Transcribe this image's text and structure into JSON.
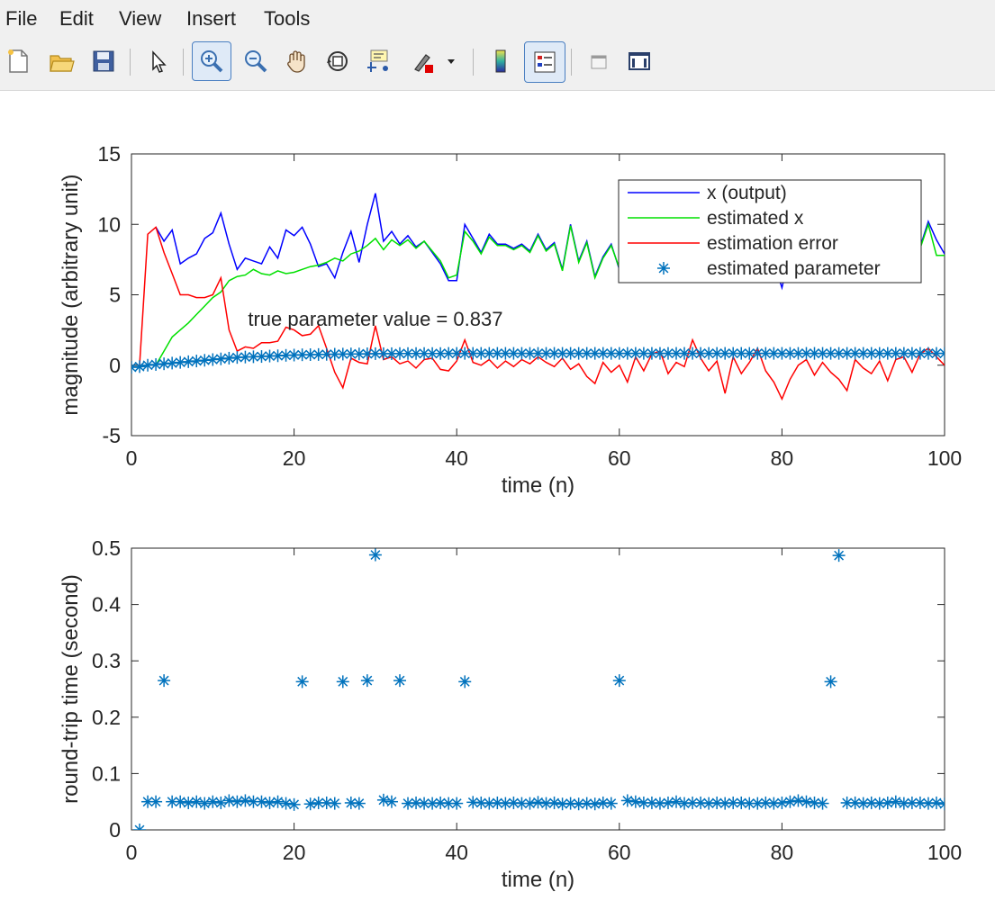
{
  "menu": {
    "items": [
      "File",
      "Edit",
      "View",
      "Insert",
      "Tools"
    ]
  },
  "toolbar": {
    "buttons": [
      "new-figure",
      "open-file",
      "save",
      "select-pointer",
      "zoom-in",
      "zoom-out",
      "pan",
      "rotate-3d",
      "data-cursor",
      "brush",
      "colorbar",
      "legend",
      "hide-plot-tools",
      "show-plot-tools"
    ],
    "active": [
      "zoom-in",
      "legend"
    ]
  },
  "chart_data": [
    {
      "type": "line",
      "xlabel": "time (n)",
      "ylabel": "magnitude (arbitrary unit)",
      "xlim": [
        0,
        100
      ],
      "ylim": [
        -5,
        15
      ],
      "xticks": [
        0,
        20,
        40,
        60,
        80,
        100
      ],
      "yticks": [
        -5,
        0,
        5,
        10,
        15
      ],
      "annotation": {
        "text": "true parameter value = 0.837",
        "x": 30,
        "y": 2.8
      },
      "legend_position": "top-right",
      "series": [
        {
          "name": "x (output)",
          "color": "#0000ff",
          "marker": "none",
          "x": [
            3,
            4,
            5,
            6,
            7,
            8,
            9,
            10,
            11,
            12,
            13,
            14,
            15,
            16,
            17,
            18,
            19,
            20,
            21,
            22,
            23,
            24,
            25,
            26,
            27,
            28,
            29,
            30,
            31,
            32,
            33,
            34,
            35,
            36,
            37,
            38,
            39,
            40,
            41,
            42,
            43,
            44,
            45,
            46,
            47,
            48,
            49,
            50,
            51,
            52,
            53,
            54,
            55,
            56,
            57,
            58,
            59,
            60,
            61,
            62,
            63,
            64,
            65,
            66,
            67,
            68,
            69,
            70,
            71,
            72,
            73,
            74,
            75,
            76,
            77,
            78,
            79,
            80,
            81,
            82,
            83,
            84,
            85,
            86,
            87,
            88,
            89,
            90,
            91,
            92,
            93,
            94,
            95,
            96,
            97,
            98,
            99,
            100
          ],
          "y": [
            9.8,
            8.8,
            9.6,
            7.2,
            7.6,
            7.9,
            9.0,
            9.4,
            10.8,
            8.6,
            6.8,
            7.6,
            7.4,
            7.2,
            8.4,
            7.6,
            9.6,
            9.2,
            9.8,
            8.6,
            7.0,
            7.2,
            6.2,
            8.0,
            9.5,
            7.3,
            10.0,
            12.2,
            8.8,
            9.5,
            8.6,
            9.2,
            8.4,
            8.8,
            8.0,
            7.2,
            6.0,
            6.0,
            10.0,
            9.0,
            8.0,
            9.3,
            8.6,
            8.6,
            8.3,
            8.6,
            8.1,
            9.3,
            8.2,
            8.7,
            6.8,
            10.0,
            7.4,
            8.8,
            6.3,
            7.7,
            8.6,
            6.8,
            7.8,
            8.5,
            7.8,
            9.0,
            7.6,
            8.4,
            8.0,
            7.0,
            9.4,
            7.8,
            8.3,
            7.5,
            8.5,
            8.1,
            9.2,
            7.6,
            7.9,
            8.6,
            7.3,
            5.5,
            8.0,
            8.3,
            7.6,
            8.8,
            7.1,
            8.4,
            7.9,
            8.6,
            7.2,
            8.3,
            8.5,
            7.8,
            8.1,
            8.9,
            7.3,
            8.0,
            8.4,
            10.2,
            8.9,
            7.9
          ]
        },
        {
          "name": "estimated x",
          "color": "#00e000",
          "marker": "none",
          "x": [
            3,
            4,
            5,
            6,
            7,
            8,
            9,
            10,
            11,
            12,
            13,
            14,
            15,
            16,
            17,
            18,
            19,
            20,
            21,
            22,
            23,
            24,
            25,
            26,
            27,
            28,
            29,
            30,
            31,
            32,
            33,
            34,
            35,
            36,
            37,
            38,
            39,
            40,
            41,
            42,
            43,
            44,
            45,
            46,
            47,
            48,
            49,
            50,
            51,
            52,
            53,
            54,
            55,
            56,
            57,
            58,
            59,
            60,
            61,
            62,
            63,
            64,
            65,
            66,
            67,
            68,
            69,
            70,
            71,
            72,
            73,
            74,
            75,
            76,
            77,
            78,
            79,
            80,
            81,
            82,
            83,
            84,
            85,
            86,
            87,
            88,
            89,
            90,
            91,
            92,
            93,
            94,
            95,
            96,
            97,
            98,
            99,
            100
          ],
          "y": [
            0.0,
            1.0,
            2.0,
            2.5,
            3.0,
            3.6,
            4.2,
            4.8,
            5.2,
            6.0,
            6.3,
            6.4,
            6.8,
            6.5,
            6.4,
            6.7,
            6.5,
            6.6,
            6.8,
            7.0,
            7.1,
            7.3,
            7.6,
            7.4,
            7.9,
            8.1,
            8.5,
            9.0,
            8.2,
            8.9,
            8.5,
            8.9,
            8.3,
            8.8,
            8.1,
            7.4,
            6.2,
            6.4,
            9.5,
            8.8,
            7.9,
            9.1,
            8.5,
            8.5,
            8.2,
            8.5,
            8.0,
            9.2,
            8.1,
            8.6,
            6.7,
            9.9,
            7.3,
            8.7,
            6.2,
            7.6,
            8.5,
            6.9,
            7.7,
            8.4,
            7.7,
            8.9,
            7.5,
            8.3,
            7.9,
            7.0,
            9.3,
            7.7,
            8.2,
            7.4,
            8.4,
            8.0,
            9.1,
            7.5,
            7.8,
            8.5,
            7.2,
            6.8,
            7.9,
            8.2,
            7.5,
            8.7,
            7.0,
            8.3,
            7.8,
            8.5,
            7.1,
            8.2,
            8.4,
            7.7,
            8.0,
            8.8,
            7.2,
            7.9,
            8.3,
            10.0,
            7.8,
            7.8
          ]
        },
        {
          "name": "estimation error",
          "color": "#ff0000",
          "marker": "none",
          "x": [
            1,
            2,
            3,
            4,
            5,
            6,
            7,
            8,
            9,
            10,
            11,
            12,
            13,
            14,
            15,
            16,
            17,
            18,
            19,
            20,
            21,
            22,
            23,
            24,
            25,
            26,
            27,
            28,
            29,
            30,
            31,
            32,
            33,
            34,
            35,
            36,
            37,
            38,
            39,
            40,
            41,
            42,
            43,
            44,
            45,
            46,
            47,
            48,
            49,
            50,
            51,
            52,
            53,
            54,
            55,
            56,
            57,
            58,
            59,
            60,
            61,
            62,
            63,
            64,
            65,
            66,
            67,
            68,
            69,
            70,
            71,
            72,
            73,
            74,
            75,
            76,
            77,
            78,
            79,
            80,
            81,
            82,
            83,
            84,
            85,
            86,
            87,
            88,
            89,
            90,
            91,
            92,
            93,
            94,
            95,
            96,
            97,
            98,
            99,
            100
          ],
          "y": [
            0.0,
            9.3,
            9.8,
            8.0,
            6.5,
            5.0,
            5.0,
            4.8,
            4.8,
            5.0,
            6.2,
            2.5,
            1.0,
            1.3,
            1.2,
            1.6,
            1.6,
            1.7,
            2.7,
            2.5,
            2.1,
            2.2,
            2.8,
            1.2,
            -0.5,
            -1.6,
            0.5,
            0.2,
            0.1,
            2.8,
            0.4,
            0.6,
            0.1,
            0.3,
            -0.2,
            0.4,
            0.5,
            -0.3,
            -0.4,
            0.3,
            1.8,
            0.2,
            0.0,
            0.4,
            -0.2,
            0.3,
            -0.1,
            0.4,
            0.1,
            0.6,
            0.2,
            -0.1,
            0.5,
            -0.3,
            0.1,
            -0.8,
            -1.3,
            0.2,
            -0.5,
            0.0,
            -1.2,
            0.6,
            -0.4,
            0.8,
            1.0,
            -0.6,
            0.2,
            -0.1,
            1.8,
            0.5,
            -0.4,
            0.3,
            -2.0,
            0.6,
            -0.6,
            0.2,
            1.2,
            -0.4,
            -1.2,
            -2.4,
            -1.0,
            0.0,
            0.4,
            -0.7,
            0.2,
            -0.5,
            -1.0,
            -1.8,
            0.4,
            -0.2,
            -0.6,
            0.3,
            -1.1,
            0.4,
            0.6,
            -0.5,
            0.8,
            1.2,
            0.6,
            0.0
          ]
        },
        {
          "name": "estimated parameter",
          "color": "#0072bd",
          "marker": "asterisk",
          "x": [
            0,
            1,
            2,
            3,
            4,
            5,
            6,
            7,
            8,
            9,
            10,
            11,
            12,
            13,
            14,
            15,
            16,
            17,
            18,
            19,
            20,
            21,
            22,
            23,
            24,
            25,
            26,
            27,
            28,
            29,
            30,
            31,
            32,
            33,
            34,
            35,
            36,
            37,
            38,
            39,
            40,
            41,
            42,
            43,
            44,
            45,
            46,
            47,
            48,
            49,
            50,
            51,
            52,
            53,
            54,
            55,
            56,
            57,
            58,
            59,
            60,
            61,
            62,
            63,
            64,
            65,
            66,
            67,
            68,
            69,
            70,
            71,
            72,
            73,
            74,
            75,
            76,
            77,
            78,
            79,
            80,
            81,
            82,
            83,
            84,
            85,
            86,
            87,
            88,
            89,
            90,
            91,
            92,
            93,
            94,
            95,
            96,
            97,
            98,
            99,
            100
          ],
          "y": [
            -0.15,
            -0.1,
            0.0,
            0.05,
            0.1,
            0.15,
            0.2,
            0.25,
            0.3,
            0.35,
            0.4,
            0.45,
            0.5,
            0.55,
            0.58,
            0.6,
            0.62,
            0.65,
            0.67,
            0.7,
            0.72,
            0.74,
            0.75,
            0.76,
            0.77,
            0.78,
            0.79,
            0.8,
            0.8,
            0.81,
            0.82,
            0.82,
            0.82,
            0.83,
            0.83,
            0.83,
            0.83,
            0.83,
            0.83,
            0.84,
            0.84,
            0.84,
            0.84,
            0.84,
            0.84,
            0.84,
            0.84,
            0.84,
            0.84,
            0.84,
            0.84,
            0.84,
            0.84,
            0.84,
            0.84,
            0.84,
            0.84,
            0.84,
            0.84,
            0.84,
            0.84,
            0.84,
            0.84,
            0.84,
            0.84,
            0.84,
            0.84,
            0.84,
            0.84,
            0.84,
            0.84,
            0.84,
            0.84,
            0.84,
            0.84,
            0.84,
            0.84,
            0.84,
            0.84,
            0.84,
            0.84,
            0.84,
            0.84,
            0.84,
            0.84,
            0.84,
            0.84,
            0.84,
            0.84,
            0.84,
            0.84,
            0.84,
            0.84,
            0.84,
            0.84,
            0.84,
            0.84,
            0.84,
            0.84,
            0.84,
            0.84
          ]
        }
      ]
    },
    {
      "type": "scatter",
      "xlabel": "time (n)",
      "ylabel": "round-trip time (second)",
      "xlim": [
        0,
        100
      ],
      "ylim": [
        0,
        0.5
      ],
      "xticks": [
        0,
        20,
        40,
        60,
        80,
        100
      ],
      "yticks": [
        0,
        0.1,
        0.2,
        0.3,
        0.4,
        0.5
      ],
      "series": [
        {
          "color": "#0072bd",
          "marker": "asterisk",
          "x": [
            1,
            2,
            3,
            4,
            5,
            6,
            7,
            8,
            9,
            10,
            11,
            12,
            13,
            14,
            15,
            16,
            17,
            18,
            19,
            20,
            21,
            22,
            23,
            24,
            25,
            26,
            27,
            28,
            29,
            30,
            31,
            32,
            33,
            34,
            35,
            36,
            37,
            38,
            39,
            40,
            41,
            42,
            43,
            44,
            45,
            46,
            47,
            48,
            49,
            50,
            51,
            52,
            53,
            54,
            55,
            56,
            57,
            58,
            59,
            60,
            61,
            62,
            63,
            64,
            65,
            66,
            67,
            68,
            69,
            70,
            71,
            72,
            73,
            74,
            75,
            76,
            77,
            78,
            79,
            80,
            81,
            82,
            83,
            84,
            85,
            86,
            87,
            88,
            89,
            90,
            91,
            92,
            93,
            94,
            95,
            96,
            97,
            98,
            99,
            100
          ],
          "y": [
            0.0,
            0.05,
            0.05,
            0.265,
            0.05,
            0.05,
            0.048,
            0.05,
            0.047,
            0.05,
            0.048,
            0.052,
            0.05,
            0.052,
            0.05,
            0.05,
            0.048,
            0.05,
            0.047,
            0.045,
            0.263,
            0.046,
            0.048,
            0.048,
            0.047,
            0.263,
            0.048,
            0.047,
            0.265,
            0.488,
            0.053,
            0.05,
            0.265,
            0.047,
            0.048,
            0.047,
            0.047,
            0.048,
            0.047,
            0.047,
            0.263,
            0.049,
            0.048,
            0.047,
            0.048,
            0.047,
            0.048,
            0.047,
            0.047,
            0.049,
            0.047,
            0.048,
            0.046,
            0.047,
            0.046,
            0.047,
            0.046,
            0.048,
            0.047,
            0.265,
            0.052,
            0.05,
            0.048,
            0.048,
            0.047,
            0.048,
            0.05,
            0.047,
            0.048,
            0.048,
            0.047,
            0.048,
            0.047,
            0.048,
            0.048,
            0.047,
            0.047,
            0.048,
            0.047,
            0.048,
            0.05,
            0.052,
            0.05,
            0.048,
            0.047,
            0.263,
            0.487,
            0.048,
            0.048,
            0.047,
            0.048,
            0.047,
            0.048,
            0.05,
            0.047,
            0.048,
            0.048,
            0.047,
            0.048,
            0.046
          ]
        }
      ]
    }
  ]
}
